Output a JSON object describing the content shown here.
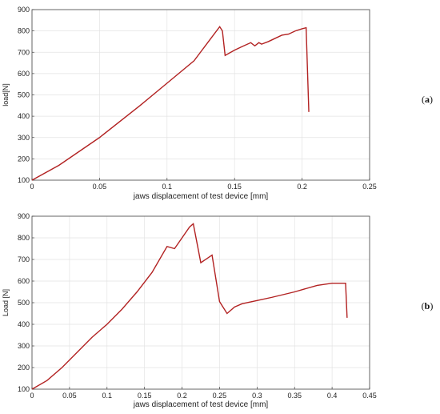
{
  "chart_data": [
    {
      "type": "line",
      "panel_label": {
        "open": "(",
        "letter": "a",
        "close": ")"
      },
      "xlabel": "jaws displacement of test device [mm]",
      "ylabel": "load[N]",
      "xlim": [
        0,
        0.25
      ],
      "ylim": [
        100,
        900
      ],
      "xticks": [
        "0",
        "0.05",
        "0.1",
        "0.15",
        "0.2",
        "0.25"
      ],
      "xtick_values": [
        0,
        0.05,
        0.1,
        0.15,
        0.2,
        0.25
      ],
      "yticks": [
        "100",
        "200",
        "300",
        "400",
        "500",
        "600",
        "700",
        "800",
        "900"
      ],
      "ytick_values": [
        100,
        200,
        300,
        400,
        500,
        600,
        700,
        800,
        900
      ],
      "grid": true,
      "line_color": "#b22222",
      "x": [
        0,
        0.02,
        0.05,
        0.08,
        0.1,
        0.12,
        0.139,
        0.141,
        0.143,
        0.15,
        0.155,
        0.162,
        0.165,
        0.168,
        0.17,
        0.175,
        0.18,
        0.185,
        0.19,
        0.195,
        0.2,
        0.203,
        0.205
      ],
      "y": [
        100,
        170,
        300,
        450,
        555,
        660,
        820,
        800,
        685,
        710,
        725,
        745,
        730,
        745,
        738,
        750,
        765,
        780,
        785,
        800,
        810,
        815,
        420
      ]
    },
    {
      "type": "line",
      "panel_label": {
        "open": "(",
        "letter": "b",
        "close": ")"
      },
      "xlabel": "jaws displacement of test device [mm]",
      "ylabel": "Load [N]",
      "xlim": [
        0,
        0.45
      ],
      "ylim": [
        100,
        900
      ],
      "xticks": [
        "0",
        "0.05",
        "0.1",
        "0.15",
        "0.2",
        "0.25",
        "0.3",
        "0.35",
        "0.4",
        "0.45"
      ],
      "xtick_values": [
        0,
        0.05,
        0.1,
        0.15,
        0.2,
        0.25,
        0.3,
        0.35,
        0.4,
        0.45
      ],
      "yticks": [
        "100",
        "200",
        "300",
        "400",
        "500",
        "600",
        "700",
        "800",
        "900"
      ],
      "ytick_values": [
        100,
        200,
        300,
        400,
        500,
        600,
        700,
        800,
        900
      ],
      "grid": true,
      "line_color": "#b22222",
      "x": [
        0,
        0.02,
        0.04,
        0.06,
        0.08,
        0.1,
        0.12,
        0.14,
        0.16,
        0.18,
        0.19,
        0.2,
        0.21,
        0.215,
        0.225,
        0.24,
        0.25,
        0.26,
        0.27,
        0.28,
        0.3,
        0.32,
        0.35,
        0.38,
        0.4,
        0.41,
        0.418,
        0.42
      ],
      "y": [
        100,
        140,
        200,
        270,
        340,
        400,
        470,
        550,
        640,
        760,
        750,
        800,
        850,
        865,
        685,
        720,
        505,
        450,
        480,
        495,
        510,
        525,
        550,
        580,
        590,
        590,
        590,
        430
      ]
    }
  ]
}
